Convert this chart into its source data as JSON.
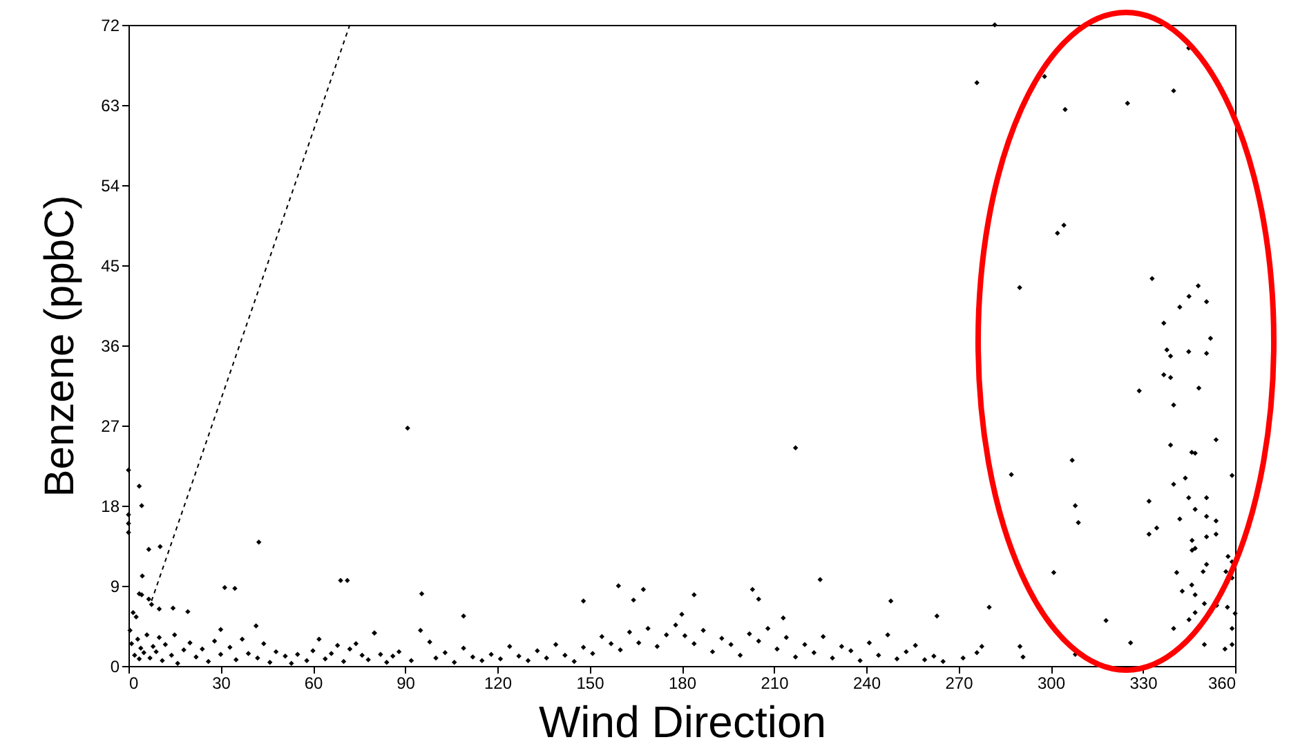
{
  "chart_data": {
    "type": "scatter",
    "xlabel": "Wind Direction",
    "ylabel": "Benzene (ppbC)",
    "xlim": [
      0,
      360
    ],
    "ylim": [
      0,
      72
    ],
    "xticks": [
      0,
      30,
      60,
      90,
      120,
      150,
      180,
      210,
      240,
      270,
      300,
      330,
      360
    ],
    "yticks": [
      0,
      9,
      18,
      27,
      36,
      45,
      54,
      63,
      72
    ],
    "grid": false,
    "series": [
      {
        "color": "#000000",
        "marker": "diamond",
        "x": [
          0,
          0,
          0,
          0,
          3.5,
          4.3,
          6.6,
          10.3,
          4.5,
          3.5,
          4.3,
          6.6,
          7.5,
          10,
          14.5,
          19.3,
          31.3,
          34.6,
          42.4,
          41.5,
          30,
          69,
          71.2,
          90.8,
          95.4,
          80,
          217,
          225,
          109,
          148,
          159.4,
          164.3,
          167.5,
          184,
          203,
          205,
          248,
          263,
          213,
          180,
          281.8,
          276,
          298,
          304.7,
          325,
          340,
          344.9,
          302.2,
          304.3,
          289.9,
          333,
          348,
          345,
          342,
          350.7,
          336.8,
          352,
          337.8,
          339,
          344.9,
          350.7,
          336.8,
          339,
          348.2,
          340,
          328.8,
          353.8,
          339,
          345.9,
          347,
          343.8,
          340,
          359,
          307,
          287.2,
          308,
          309,
          332,
          344.9,
          350.7,
          347,
          350.7,
          342,
          353.8,
          332,
          334.5,
          350.7,
          353.8,
          346,
          346,
          347,
          357.7,
          350.7,
          341,
          349.6,
          357,
          301,
          359,
          359,
          342.8,
          345.9,
          347,
          350,
          354,
          347,
          357.5,
          360,
          345,
          340,
          359,
          350,
          359,
          356.7,
          280,
          318,
          326,
          308,
          290,
          291,
          277.6,
          276,
          271.5,
          0.5,
          1,
          1.5,
          2,
          2.5,
          3,
          3.5,
          4,
          5,
          6,
          7,
          8,
          9,
          10,
          11,
          12,
          14,
          15,
          16,
          18,
          20,
          22,
          24,
          26,
          28,
          30,
          33,
          35,
          37,
          39,
          42,
          44,
          46,
          48,
          51,
          53,
          55,
          58,
          60,
          62,
          64,
          66,
          68,
          70,
          72,
          74,
          76,
          78,
          80,
          82,
          84,
          86,
          88,
          92,
          95,
          98,
          100,
          103,
          106,
          109,
          112,
          115,
          118,
          121,
          124,
          127,
          130,
          133,
          136,
          139,
          142,
          145,
          148,
          151,
          154,
          157,
          160,
          163,
          166,
          169,
          172,
          175,
          178,
          181,
          184,
          187,
          190,
          193,
          196,
          199,
          202,
          205,
          208,
          211,
          214,
          217,
          220,
          223,
          226,
          229,
          232,
          235,
          238,
          241,
          244,
          247,
          250,
          253,
          256,
          259,
          262,
          265
        ],
        "values": [
          22,
          16,
          15,
          17,
          20.2,
          18,
          13.1,
          13.4,
          10.1,
          8.1,
          8,
          7.5,
          6.9,
          6.4,
          6.5,
          6.1,
          8.8,
          8.7,
          13.9,
          4.5,
          4.1,
          9.6,
          9.6,
          26.7,
          8.1,
          3.7,
          24.5,
          9.7,
          5.6,
          7.3,
          9,
          7.4,
          8.6,
          8,
          8.6,
          7.5,
          7.3,
          5.6,
          5.4,
          5.8,
          72,
          65.5,
          66.2,
          62.5,
          63.2,
          64.6,
          69.4,
          48.6,
          49.5,
          42.5,
          43.5,
          42.7,
          41.5,
          40.3,
          40.9,
          38.5,
          36.8,
          35.5,
          34.8,
          35.3,
          35.1,
          32.7,
          32.4,
          31.2,
          29.3,
          30.9,
          25.4,
          24.8,
          24,
          23.9,
          21.1,
          20.4,
          21.4,
          23.1,
          21.5,
          18,
          16.1,
          18.5,
          18.9,
          18.9,
          17.6,
          16.8,
          16.5,
          16.3,
          14.8,
          15.5,
          14.5,
          14.8,
          14.1,
          13,
          13.2,
          12.3,
          11.4,
          10.5,
          10.6,
          10.6,
          10.5,
          11.7,
          9.9,
          8.4,
          9.1,
          8,
          7,
          6.8,
          6,
          6.6,
          5.9,
          5.2,
          4.2,
          4.2,
          2.4,
          2.4,
          1.9,
          6.6,
          5.1,
          2.6,
          1.3,
          2.2,
          1,
          2.2,
          1.5,
          0.9,
          4,
          2.5,
          6,
          1.2,
          5.5,
          3,
          0.8,
          2,
          1.5,
          3.5,
          0.9,
          2.2,
          1.6,
          3.2,
          0.6,
          2.4,
          1.2,
          3.5,
          0.3,
          1.8,
          2.6,
          1,
          1.9,
          0.5,
          2.8,
          1.3,
          2.1,
          0.7,
          3,
          1.4,
          0.9,
          2.5,
          0.4,
          1.6,
          1.1,
          0.3,
          1.3,
          0.6,
          1.7,
          3,
          0.8,
          1.4,
          2.3,
          0.5,
          1.9,
          2.5,
          1.2,
          0.7,
          3.7,
          1.3,
          0.4,
          1.1,
          1.6,
          0.6,
          4,
          2.7,
          0.9,
          1.5,
          0.4,
          2,
          1,
          0.6,
          1.3,
          0.8,
          2.2,
          1.1,
          0.6,
          1.7,
          0.9,
          2.4,
          1.2,
          0.5,
          2.1,
          1.4,
          3.3,
          2.5,
          1.8,
          3.8,
          2.6,
          4.2,
          2.2,
          3.5,
          4.6,
          3.4,
          2.5,
          4,
          1.6,
          3.1,
          2.4,
          1.2,
          3.6,
          2.8,
          4.2,
          1.9,
          3.2,
          1,
          2.4,
          1.5,
          3.3,
          0.9,
          2.2,
          1.7,
          0.6,
          2.6,
          1.2,
          3.5,
          0.8,
          1.6,
          2.3,
          0.7,
          1.1,
          0.5
        ]
      },
      {
        "type": "line",
        "color": "#000000",
        "line_style": "dashed",
        "x": [
          7.5,
          72
        ],
        "values": [
          7.3,
          72
        ]
      }
    ]
  }
}
